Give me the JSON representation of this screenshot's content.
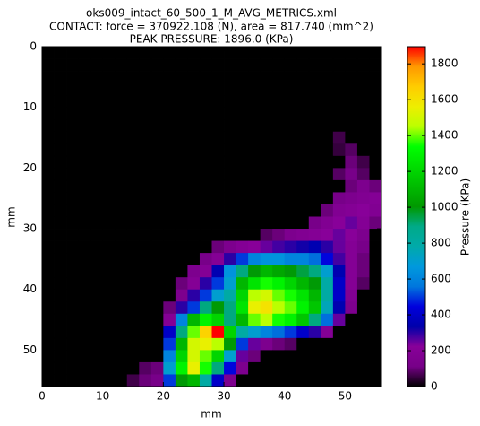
{
  "chart_data": {
    "type": "heatmap",
    "title": [
      "oks009_intact_60_500_1_M_AVG_METRICS.xml",
      "CONTACT: force = 370922.108 (N), area = 817.740 (mm^2)",
      "PEAK PRESSURE: 1896.0 (KPa)"
    ],
    "xlabel": "mm",
    "ylabel": "mm",
    "xlim": [
      0,
      56
    ],
    "ylim": [
      56,
      0
    ],
    "xticks": [
      0,
      10,
      20,
      30,
      40,
      50
    ],
    "yticks": [
      0,
      10,
      20,
      30,
      40,
      50
    ],
    "colorbar_label": "Pressure (KPa)",
    "clim": [
      0,
      1896
    ],
    "cticks": [
      0,
      200,
      400,
      600,
      800,
      1000,
      1200,
      1400,
      1600,
      1800
    ],
    "colormap": [
      "#000000",
      "#770088",
      "#880099",
      "#0000aa",
      "#0000dd",
      "#0077dd",
      "#0099dd",
      "#00aaaa",
      "#00aa88",
      "#009900",
      "#00bb00",
      "#00dd00",
      "#00ff00",
      "#bbff00",
      "#eeee00",
      "#ffcc00",
      "#ff9900",
      "#ff0000"
    ],
    "z": [
      [
        0,
        0,
        0,
        0,
        0,
        0,
        0,
        0,
        0,
        0,
        0,
        0,
        0,
        0,
        0,
        0,
        0,
        0,
        0,
        0,
        0,
        0,
        0,
        0,
        0,
        0,
        0,
        0
      ],
      [
        0,
        0,
        0,
        0,
        0,
        0,
        0,
        0,
        0,
        0,
        0,
        0,
        0,
        0,
        0,
        0,
        0,
        0,
        0,
        0,
        0,
        0,
        0,
        0,
        0,
        0,
        0,
        0
      ],
      [
        0,
        0,
        0,
        0,
        0,
        0,
        0,
        0,
        0,
        0,
        0,
        0,
        0,
        0,
        0,
        0,
        0,
        0,
        0,
        0,
        0,
        0,
        0,
        0,
        0,
        0,
        0,
        0
      ],
      [
        0,
        0,
        0,
        0,
        0,
        0,
        0,
        0,
        0,
        0,
        0,
        0,
        0,
        0,
        0,
        0,
        0,
        0,
        0,
        0,
        0,
        0,
        0,
        0,
        0,
        0,
        0,
        0
      ],
      [
        0,
        0,
        0,
        0,
        0,
        0,
        0,
        0,
        0,
        0,
        0,
        0,
        0,
        0,
        0,
        0,
        0,
        0,
        0,
        0,
        0,
        0,
        0,
        0,
        0,
        0,
        0,
        0
      ],
      [
        0,
        0,
        0,
        0,
        0,
        0,
        0,
        0,
        0,
        0,
        0,
        0,
        0,
        0,
        0,
        0,
        0,
        0,
        0,
        0,
        0,
        0,
        0,
        0,
        0,
        0,
        0,
        0
      ],
      [
        0,
        0,
        0,
        0,
        0,
        0,
        0,
        0,
        0,
        0,
        0,
        0,
        0,
        0,
        0,
        0,
        0,
        0,
        0,
        0,
        0,
        0,
        0,
        0,
        0,
        0,
        0,
        0
      ],
      [
        0,
        0,
        0,
        0,
        0,
        0,
        0,
        0,
        0,
        0,
        0,
        0,
        0,
        0,
        0,
        0,
        0,
        0,
        0,
        0,
        0,
        0,
        0,
        0,
        60,
        0,
        0,
        0
      ],
      [
        0,
        0,
        0,
        0,
        0,
        0,
        0,
        0,
        0,
        0,
        0,
        0,
        0,
        0,
        0,
        0,
        0,
        0,
        0,
        0,
        0,
        0,
        0,
        0,
        50,
        80,
        0,
        0
      ],
      [
        0,
        0,
        0,
        0,
        0,
        0,
        0,
        0,
        0,
        0,
        0,
        0,
        0,
        0,
        0,
        0,
        0,
        0,
        0,
        0,
        0,
        0,
        0,
        0,
        0,
        100,
        60,
        0
      ],
      [
        0,
        0,
        0,
        0,
        0,
        0,
        0,
        0,
        0,
        0,
        0,
        0,
        0,
        0,
        0,
        0,
        0,
        0,
        0,
        0,
        0,
        0,
        0,
        0,
        80,
        120,
        80,
        0
      ],
      [
        0,
        0,
        0,
        0,
        0,
        0,
        0,
        0,
        0,
        0,
        0,
        0,
        0,
        0,
        0,
        0,
        0,
        0,
        0,
        0,
        0,
        0,
        0,
        0,
        0,
        100,
        150,
        100
      ],
      [
        0,
        0,
        0,
        0,
        0,
        0,
        0,
        0,
        0,
        0,
        0,
        0,
        0,
        0,
        0,
        0,
        0,
        0,
        0,
        0,
        0,
        0,
        0,
        0,
        120,
        150,
        180,
        200
      ],
      [
        0,
        0,
        0,
        0,
        0,
        0,
        0,
        0,
        0,
        0,
        0,
        0,
        0,
        0,
        0,
        0,
        0,
        0,
        0,
        0,
        0,
        0,
        0,
        100,
        180,
        200,
        220,
        180
      ],
      [
        0,
        0,
        0,
        0,
        0,
        0,
        0,
        0,
        0,
        0,
        0,
        0,
        0,
        0,
        0,
        0,
        0,
        0,
        0,
        0,
        0,
        0,
        120,
        180,
        220,
        250,
        200,
        100
      ],
      [
        0,
        0,
        0,
        0,
        0,
        0,
        0,
        0,
        0,
        0,
        0,
        0,
        0,
        0,
        0,
        0,
        0,
        0,
        80,
        100,
        150,
        180,
        200,
        220,
        250,
        220,
        150,
        0
      ],
      [
        0,
        0,
        0,
        0,
        0,
        0,
        0,
        0,
        0,
        0,
        0,
        0,
        0,
        0,
        100,
        150,
        200,
        220,
        250,
        280,
        300,
        320,
        350,
        300,
        250,
        200,
        120,
        0
      ],
      [
        0,
        0,
        0,
        0,
        0,
        0,
        0,
        0,
        0,
        0,
        0,
        0,
        0,
        120,
        200,
        300,
        500,
        600,
        650,
        650,
        600,
        600,
        550,
        450,
        280,
        200,
        100,
        0
      ],
      [
        0,
        0,
        0,
        0,
        0,
        0,
        0,
        0,
        0,
        0,
        0,
        0,
        150,
        200,
        350,
        650,
        900,
        1000,
        1100,
        1050,
        1000,
        950,
        900,
        700,
        350,
        200,
        100,
        0
      ],
      [
        0,
        0,
        0,
        0,
        0,
        0,
        0,
        0,
        0,
        0,
        0,
        100,
        200,
        300,
        500,
        700,
        1100,
        1250,
        1350,
        1300,
        1200,
        1100,
        1000,
        800,
        400,
        200,
        80,
        0
      ],
      [
        0,
        0,
        0,
        0,
        0,
        0,
        0,
        0,
        0,
        0,
        0,
        150,
        300,
        500,
        700,
        800,
        1200,
        1450,
        1500,
        1400,
        1350,
        1250,
        1100,
        800,
        400,
        180,
        0,
        0
      ],
      [
        0,
        0,
        0,
        0,
        0,
        0,
        0,
        0,
        0,
        0,
        100,
        300,
        500,
        900,
        1000,
        900,
        1250,
        1550,
        1600,
        1450,
        1400,
        1300,
        1150,
        750,
        350,
        150,
        0,
        0
      ],
      [
        0,
        0,
        0,
        0,
        0,
        0,
        0,
        0,
        0,
        0,
        200,
        600,
        1100,
        1300,
        1200,
        900,
        1100,
        1400,
        1450,
        1350,
        1300,
        1150,
        900,
        550,
        250,
        0,
        0,
        0
      ],
      [
        0,
        0,
        0,
        0,
        0,
        0,
        0,
        0,
        0,
        0,
        400,
        900,
        1400,
        1650,
        1896,
        1200,
        800,
        700,
        600,
        550,
        500,
        400,
        300,
        200,
        0,
        0,
        0,
        0
      ],
      [
        0,
        0,
        0,
        0,
        0,
        0,
        0,
        0,
        0,
        0,
        500,
        1100,
        1500,
        1550,
        1450,
        1000,
        500,
        250,
        150,
        100,
        80,
        0,
        0,
        0,
        0,
        0,
        0,
        0
      ],
      [
        0,
        0,
        0,
        0,
        0,
        0,
        0,
        0,
        0,
        0,
        600,
        1200,
        1500,
        1400,
        1200,
        700,
        250,
        100,
        0,
        0,
        0,
        0,
        0,
        0,
        0,
        0,
        0,
        0
      ],
      [
        0,
        0,
        0,
        0,
        0,
        0,
        0,
        0,
        80,
        100,
        700,
        1300,
        1550,
        1350,
        900,
        450,
        150,
        0,
        0,
        0,
        0,
        0,
        0,
        0,
        0,
        0,
        0,
        0
      ],
      [
        0,
        0,
        0,
        0,
        0,
        0,
        0,
        60,
        100,
        120,
        500,
        1000,
        1100,
        800,
        400,
        150,
        0,
        0,
        0,
        0,
        0,
        0,
        0,
        0,
        0,
        0,
        0,
        0
      ]
    ]
  }
}
